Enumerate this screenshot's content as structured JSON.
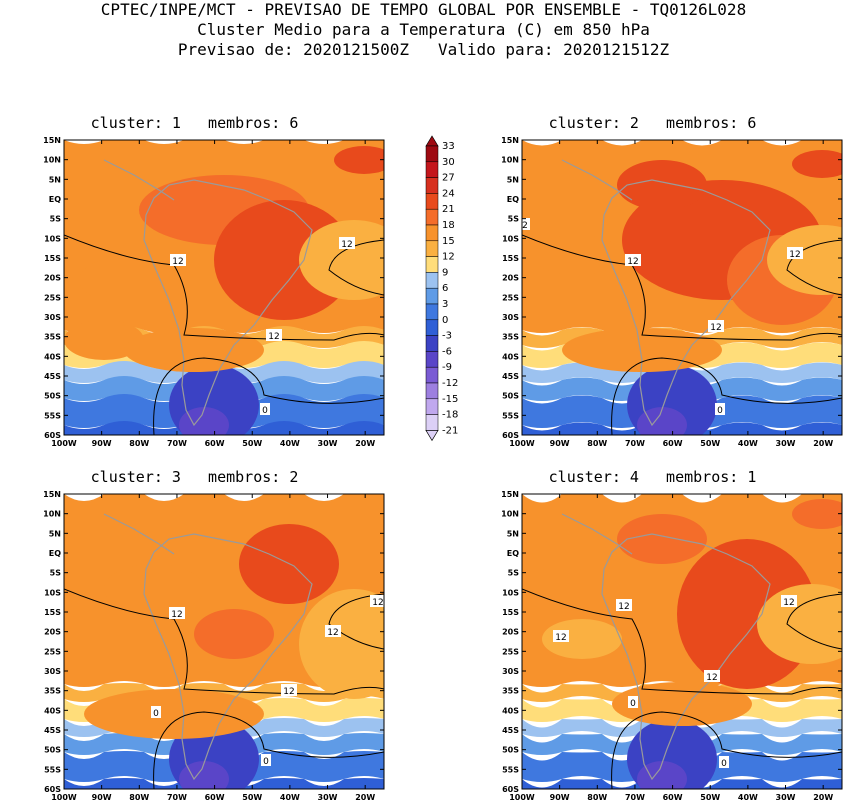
{
  "header": {
    "line1": "CPTEC/INPE/MCT - PREVISAO DE TEMPO GLOBAL POR ENSEMBLE - TQ0126L028",
    "line2": "Cluster Medio para a Temperatura (C) em 850 hPa",
    "line3": "Previsao de: 2020121500Z   Valido para: 2020121512Z"
  },
  "lat_ticks": [
    "15N",
    "10N",
    "5N",
    "EQ",
    "5S",
    "10S",
    "15S",
    "20S",
    "25S",
    "30S",
    "35S",
    "40S",
    "45S",
    "50S",
    "55S",
    "60S"
  ],
  "lon_ticks": [
    "100W",
    "90W",
    "80W",
    "70W",
    "60W",
    "50W",
    "40W",
    "30W",
    "20W"
  ],
  "colorbar": {
    "labels": [
      "33",
      "30",
      "27",
      "24",
      "21",
      "18",
      "15",
      "12",
      "9",
      "6",
      "3",
      "0",
      "-3",
      "-6",
      "-9",
      "-12",
      "-15",
      "-18",
      "-21"
    ],
    "colors": {
      "t30": "#9e0a12",
      "t27": "#c4161c",
      "t24": "#d7301f",
      "t21": "#e84a1c",
      "t18": "#f46d2a",
      "t15": "#f7922c",
      "t12": "#fab041",
      "t9": "#ffdd7a",
      "t6": "#9cc2f0",
      "t3": "#5f9be6",
      "t0": "#3f78df",
      "tm3": "#2f5fd6",
      "tm6": "#3b42c4",
      "tm9": "#5a45c8",
      "tm12": "#7a5bd4",
      "tm15": "#9d7fe0",
      "tm18": "#c0a8ee",
      "tm21": "#dcd0f6"
    }
  },
  "panels": [
    {
      "title": "cluster: 1   membros: 6",
      "contour_labels": [
        "12",
        "12",
        "12",
        "0"
      ]
    },
    {
      "title": "cluster: 2   membros: 6",
      "contour_labels": [
        "2",
        "12",
        "12",
        "12",
        "0"
      ]
    },
    {
      "title": "cluster: 3   membros: 2",
      "contour_labels": [
        "12",
        "12",
        "12",
        "12",
        "0",
        "0"
      ]
    },
    {
      "title": "cluster: 4   membros: 1",
      "contour_labels": [
        "12",
        "12",
        "12",
        "12",
        "0",
        "0"
      ]
    }
  ]
}
